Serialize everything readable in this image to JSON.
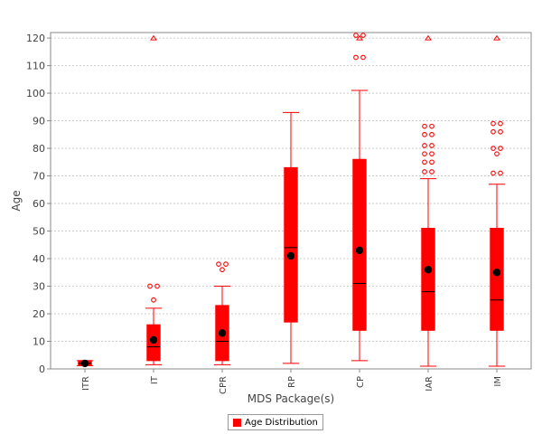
{
  "colors": {
    "series": "#ff0000",
    "mean": "#000000",
    "median": "#000000",
    "grid": "#c0c0c0",
    "axis": "#888888"
  },
  "chart_data": {
    "type": "box",
    "title": "",
    "xlabel": "MDS Package(s)",
    "ylabel": "Age",
    "ylim": [
      0,
      122
    ],
    "yticks": [
      0,
      10,
      20,
      30,
      40,
      50,
      60,
      70,
      80,
      90,
      100,
      110,
      120
    ],
    "grid": true,
    "legend_position": "bottom-center",
    "categories": [
      "ITR",
      "IT",
      "CPR",
      "RP",
      "CP",
      "IAR",
      "IM"
    ],
    "series": [
      {
        "name": "Age Distribution",
        "color": "#ff0000",
        "boxes": [
          {
            "category": "ITR",
            "whisker_low": 1.2,
            "q1": 1.2,
            "median": 2,
            "mean": 2,
            "q3": 3,
            "whisker_high": 3,
            "outliers": [],
            "far_outliers": []
          },
          {
            "category": "IT",
            "whisker_low": 1.5,
            "q1": 3,
            "median": 8,
            "mean": 10.5,
            "q3": 16,
            "whisker_high": 22,
            "outliers": [
              25,
              30,
              30
            ],
            "far_outliers": [
              120
            ]
          },
          {
            "category": "CPR",
            "whisker_low": 1.5,
            "q1": 3,
            "median": 10,
            "mean": 13,
            "q3": 23,
            "whisker_high": 30,
            "outliers": [
              36,
              38,
              38
            ],
            "far_outliers": []
          },
          {
            "category": "RP",
            "whisker_low": 2,
            "q1": 17,
            "median": 44,
            "mean": 41,
            "q3": 73,
            "whisker_high": 93,
            "outliers": [],
            "far_outliers": []
          },
          {
            "category": "CP",
            "whisker_low": 3,
            "q1": 14,
            "median": 31,
            "mean": 43,
            "q3": 76,
            "whisker_high": 101,
            "outliers": [
              113,
              113,
              121,
              121
            ],
            "far_outliers": [
              120
            ]
          },
          {
            "category": "IAR",
            "whisker_low": 1,
            "q1": 14,
            "median": 28,
            "mean": 36,
            "q3": 51,
            "whisker_high": 69,
            "outliers": [
              71.5,
              71.5,
              75,
              75,
              78,
              78,
              81,
              81,
              85,
              85,
              88,
              88
            ],
            "far_outliers": [
              120
            ]
          },
          {
            "category": "IM",
            "whisker_low": 1,
            "q1": 14,
            "median": 25,
            "mean": 35,
            "q3": 51,
            "whisker_high": 67,
            "outliers": [
              71,
              71,
              78,
              80,
              80,
              86,
              86,
              89,
              89
            ],
            "far_outliers": [
              120
            ]
          }
        ]
      }
    ]
  }
}
